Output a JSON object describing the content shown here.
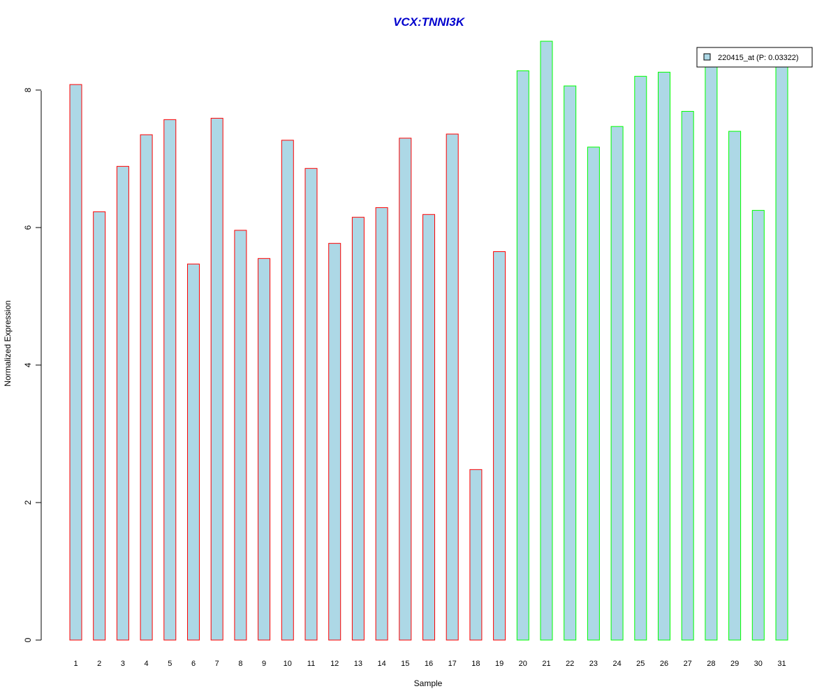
{
  "chart_data": {
    "type": "bar",
    "title": "VCX:TNNI3K",
    "xlabel": "Sample",
    "ylabel": "Normalized Expression",
    "categories": [
      "1",
      "2",
      "3",
      "4",
      "5",
      "6",
      "7",
      "8",
      "9",
      "10",
      "11",
      "12",
      "13",
      "14",
      "15",
      "16",
      "17",
      "18",
      "19",
      "20",
      "21",
      "22",
      "23",
      "24",
      "25",
      "26",
      "27",
      "28",
      "29",
      "30",
      "31"
    ],
    "series": [
      {
        "name": "220415_at (P: 0.03322)",
        "values": [
          8.08,
          6.23,
          6.89,
          7.35,
          7.57,
          5.47,
          7.59,
          5.96,
          5.55,
          7.27,
          6.86,
          5.77,
          6.15,
          6.29,
          7.3,
          6.19,
          7.36,
          2.48,
          5.65,
          8.28,
          8.71,
          8.06,
          7.17,
          7.47,
          8.2,
          8.26,
          7.69,
          8.37,
          7.4,
          6.25,
          8.36
        ]
      }
    ],
    "groups": [
      {
        "samples": "1-19",
        "border_color": "#ff0000"
      },
      {
        "samples": "20-31",
        "border_color": "#00ff00"
      }
    ],
    "ylim": [
      0,
      8.71
    ],
    "yticks": [
      0,
      2,
      4,
      6,
      8
    ],
    "bar_fill": "#add8e6",
    "title_color": "#0000cd",
    "legend_position": "top-right",
    "grid": false
  }
}
